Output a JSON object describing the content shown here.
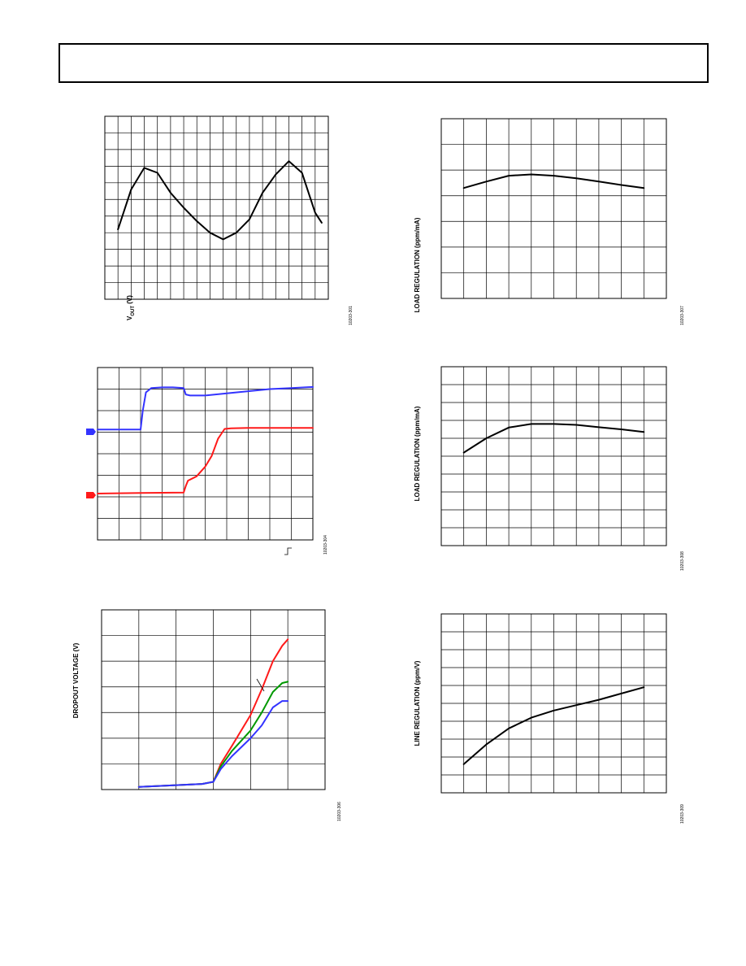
{
  "header": {
    "text": ""
  },
  "figures": [
    {
      "fig_id": "10203-301",
      "ylabel_main": "V",
      "ylabel_sub": "OUT",
      "ylabel_unit": " (V)"
    },
    {
      "fig_id": "10203-307",
      "ylabel": "LOAD REGULATION (ppm/mA)"
    },
    {
      "fig_id": "10203-304"
    },
    {
      "fig_id": "10203-308",
      "ylabel": "LOAD REGULATION (ppm/mA)"
    },
    {
      "fig_id": "10203-306",
      "ylabel": "DROPOUT VOLTAGE (V)"
    },
    {
      "fig_id": "10203-309",
      "ylabel": "LINE REGULATION (ppm/V)"
    }
  ],
  "colors": {
    "black": "#000000",
    "blue": "#3333ff",
    "red": "#ff1a1a",
    "green": "#009900",
    "grid": "#000000"
  },
  "chart_data": [
    {
      "id": "vout",
      "type": "line",
      "xlim": [
        0,
        17
      ],
      "ylim": [
        0,
        11
      ],
      "grid": true,
      "grid_x_divisions": 17,
      "grid_y_divisions": 11,
      "series": [
        {
          "color": "#000000",
          "x": [
            1,
            2,
            3,
            4,
            5,
            6,
            7,
            8,
            9,
            10,
            11,
            12,
            13,
            14,
            15,
            16,
            16.5
          ],
          "y": [
            4.2,
            6.6,
            7.9,
            7.6,
            6.4,
            5.5,
            4.7,
            4.0,
            3.6,
            4.0,
            4.8,
            6.4,
            7.5,
            8.3,
            7.6,
            5.2,
            4.6
          ]
        }
      ]
    },
    {
      "id": "load-regulation-1",
      "type": "line",
      "xlim": [
        0,
        10
      ],
      "ylim": [
        0,
        7
      ],
      "grid": true,
      "grid_x_divisions": 10,
      "grid_y_divisions": 7,
      "series": [
        {
          "color": "#000000",
          "x": [
            1,
            2,
            3,
            4,
            5,
            6,
            7,
            8,
            9
          ],
          "y": [
            4.3,
            4.55,
            4.78,
            4.83,
            4.78,
            4.68,
            4.55,
            4.42,
            4.3
          ]
        }
      ]
    },
    {
      "id": "transient",
      "type": "line",
      "xlim": [
        0,
        10
      ],
      "ylim": [
        0,
        8
      ],
      "grid": true,
      "grid_x_divisions": 10,
      "grid_y_divisions": 8,
      "series": [
        {
          "color": "#3333ff",
          "x": [
            0,
            1.5,
            2.0,
            2.1,
            2.25,
            2.5,
            3.0,
            3.5,
            4.0,
            4.1,
            4.3,
            5.0,
            6.0,
            7.0,
            8.0,
            9.0,
            10.0
          ],
          "y": [
            5.12,
            5.12,
            5.12,
            6.0,
            6.85,
            7.05,
            7.08,
            7.08,
            7.05,
            6.75,
            6.7,
            6.7,
            6.8,
            6.9,
            7.0,
            7.05,
            7.1
          ]
        },
        {
          "color": "#ff1a1a",
          "x": [
            0,
            2.0,
            4.0,
            4.1,
            4.2,
            4.6,
            5.0,
            5.3,
            5.6,
            5.9,
            6.2,
            7.0,
            8.0,
            9.0,
            10.0
          ],
          "y": [
            2.15,
            2.18,
            2.2,
            2.5,
            2.75,
            2.95,
            3.4,
            3.9,
            4.7,
            5.15,
            5.18,
            5.2,
            5.2,
            5.2,
            5.2
          ]
        }
      ]
    },
    {
      "id": "load-regulation-2",
      "type": "line",
      "xlim": [
        0,
        10
      ],
      "ylim": [
        0,
        10
      ],
      "grid": true,
      "grid_x_divisions": 10,
      "grid_y_divisions": 10,
      "series": [
        {
          "color": "#000000",
          "x": [
            1,
            2,
            3,
            4,
            5,
            6,
            7,
            8,
            9
          ],
          "y": [
            5.2,
            6.0,
            6.6,
            6.8,
            6.8,
            6.75,
            6.62,
            6.5,
            6.35
          ]
        }
      ]
    },
    {
      "id": "dropout-voltage",
      "type": "line",
      "xlim": [
        0,
        6
      ],
      "ylim": [
        0,
        7
      ],
      "grid": true,
      "grid_x_divisions": 6,
      "grid_y_divisions": 7,
      "series": [
        {
          "color": "#ff1a1a",
          "x": [
            1,
            2,
            2.7,
            3.0,
            3.2,
            3.5,
            4.0,
            4.3,
            4.6,
            4.85,
            5.0
          ],
          "y": [
            0.1,
            0.17,
            0.22,
            0.3,
            1.0,
            1.7,
            2.9,
            3.9,
            5.0,
            5.6,
            5.85
          ]
        },
        {
          "color": "#009900",
          "x": [
            1,
            2,
            2.7,
            3.0,
            3.2,
            3.5,
            4.0,
            4.3,
            4.6,
            4.85,
            5.0
          ],
          "y": [
            0.1,
            0.17,
            0.22,
            0.3,
            0.9,
            1.5,
            2.3,
            3.0,
            3.8,
            4.15,
            4.2
          ]
        },
        {
          "color": "#3333ff",
          "x": [
            1,
            2,
            2.7,
            3.0,
            3.2,
            3.5,
            4.0,
            4.3,
            4.6,
            4.85,
            5.0
          ],
          "y": [
            0.1,
            0.17,
            0.22,
            0.3,
            0.8,
            1.3,
            2.0,
            2.5,
            3.2,
            3.45,
            3.45
          ]
        }
      ]
    },
    {
      "id": "line-regulation",
      "type": "line",
      "xlim": [
        0,
        10
      ],
      "ylim": [
        0,
        10
      ],
      "grid": true,
      "grid_x_divisions": 10,
      "grid_y_divisions": 10,
      "series": [
        {
          "color": "#000000",
          "x": [
            1,
            2,
            3,
            4,
            5,
            6,
            7,
            8,
            9
          ],
          "y": [
            1.6,
            2.7,
            3.6,
            4.2,
            4.6,
            4.9,
            5.2,
            5.55,
            5.9
          ]
        }
      ]
    }
  ]
}
